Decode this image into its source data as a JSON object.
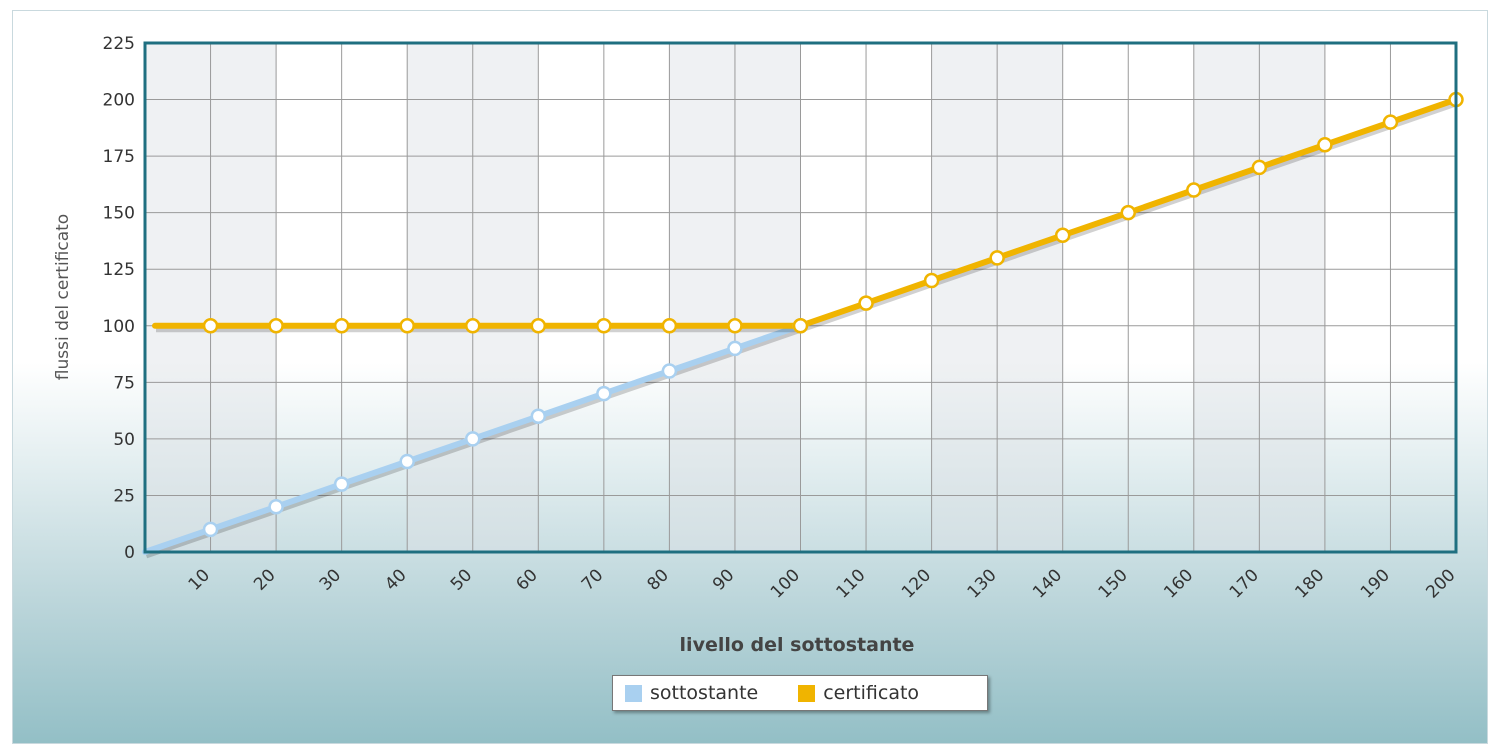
{
  "chart_data": {
    "type": "line",
    "title": "",
    "xlabel": "livello del sottostante",
    "ylabel": "flussi del certificato",
    "ylim": [
      0,
      225
    ],
    "yticks": [
      0,
      25,
      50,
      75,
      100,
      125,
      150,
      175,
      200,
      225
    ],
    "x": [
      10,
      20,
      30,
      40,
      50,
      60,
      70,
      80,
      90,
      100,
      110,
      120,
      130,
      140,
      150,
      160,
      170,
      180,
      190,
      200
    ],
    "grid": true,
    "legend_position": "bottom-center",
    "series": [
      {
        "name": "sottostante",
        "color": "#a9d0f0",
        "values": [
          10,
          20,
          30,
          40,
          50,
          60,
          70,
          80,
          90,
          100,
          null,
          null,
          null,
          null,
          null,
          null,
          null,
          null,
          null,
          null
        ]
      },
      {
        "name": "certificato",
        "color": "#f0b400",
        "values": [
          100,
          100,
          100,
          100,
          100,
          100,
          100,
          100,
          100,
          100,
          110,
          120,
          130,
          140,
          150,
          160,
          170,
          180,
          190,
          200
        ]
      }
    ]
  }
}
